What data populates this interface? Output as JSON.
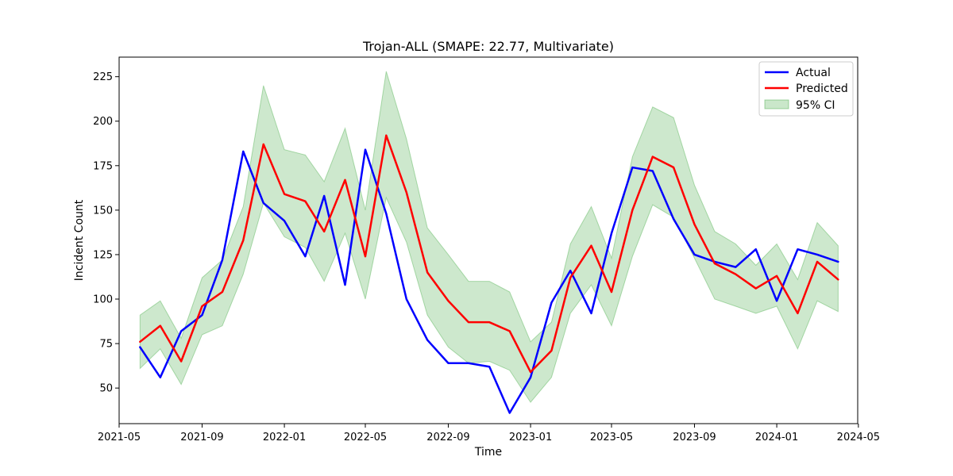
{
  "chart_data": {
    "type": "line",
    "title": "Trojan-ALL (SMAPE: 22.77, Multivariate)",
    "xlabel": "Time",
    "ylabel": "Incident Count",
    "x": [
      "2021-06",
      "2021-07",
      "2021-08",
      "2021-09",
      "2021-10",
      "2021-11",
      "2021-12",
      "2022-01",
      "2022-02",
      "2022-03",
      "2022-04",
      "2022-05",
      "2022-06",
      "2022-07",
      "2022-08",
      "2022-09",
      "2022-10",
      "2022-11",
      "2022-12",
      "2023-01",
      "2023-02",
      "2023-03",
      "2023-04",
      "2023-05",
      "2023-06",
      "2023-07",
      "2023-08",
      "2023-09",
      "2023-10",
      "2023-11",
      "2023-12",
      "2024-01",
      "2024-02",
      "2024-03",
      "2024-04"
    ],
    "xlim": [
      "2021-05-01",
      "2024-04-30"
    ],
    "ylim": [
      30,
      236
    ],
    "x_ticks": [
      "2021-05",
      "2021-09",
      "2022-01",
      "2022-05",
      "2022-09",
      "2023-01",
      "2023-05",
      "2023-09",
      "2024-01",
      "2024-05"
    ],
    "y_ticks": [
      50,
      75,
      100,
      125,
      150,
      175,
      200,
      225
    ],
    "series": [
      {
        "name": "Actual",
        "color": "#0000ff",
        "values": [
          73,
          56,
          82,
          91,
          122,
          183,
          154,
          144,
          124,
          158,
          108,
          184,
          148,
          100,
          77,
          64,
          64,
          62,
          36,
          56,
          98,
          116,
          92,
          137,
          174,
          172,
          145,
          125,
          121,
          118,
          128,
          99,
          128,
          125,
          121
        ]
      },
      {
        "name": "Predicted",
        "color": "#ff0000",
        "values": [
          76,
          85,
          65,
          96,
          104,
          133,
          187,
          159,
          155,
          138,
          167,
          124,
          192,
          160,
          115,
          99,
          87,
          87,
          82,
          59,
          71,
          112,
          130,
          104,
          150,
          180,
          174,
          142,
          120,
          114,
          106,
          113,
          92,
          121,
          111
        ]
      }
    ],
    "ci": {
      "name": "95% CI",
      "color": "#2ca02c",
      "upper": [
        91,
        99,
        78,
        112,
        122,
        152,
        220,
        184,
        181,
        166,
        196,
        150,
        228,
        190,
        140,
        125,
        110,
        110,
        104,
        76,
        87,
        131,
        152,
        123,
        180,
        208,
        202,
        164,
        138,
        131,
        119,
        131,
        111,
        143,
        130
      ],
      "lower": [
        61,
        72,
        52,
        80,
        85,
        114,
        154,
        135,
        129,
        110,
        137,
        100,
        157,
        132,
        91,
        73,
        64,
        65,
        60,
        42,
        56,
        92,
        108,
        85,
        124,
        153,
        146,
        123,
        100,
        96,
        92,
        96,
        72,
        99,
        93
      ]
    },
    "legend": "top-right",
    "grid": false
  }
}
